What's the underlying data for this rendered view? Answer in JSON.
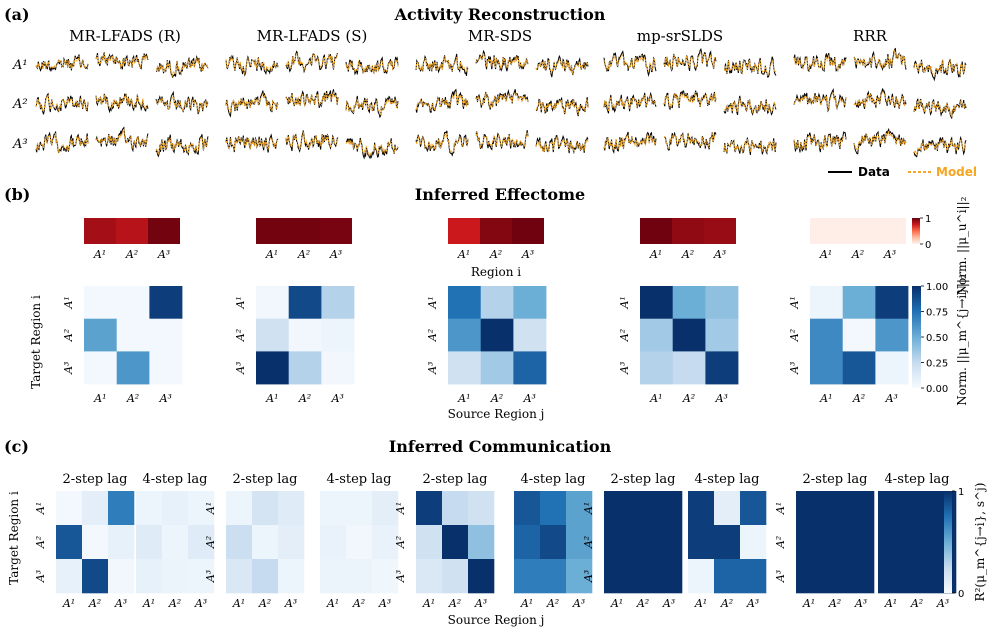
{
  "panel_a": {
    "label": "(a)",
    "title": "Activity Reconstruction",
    "models": [
      "MR-LFADS (R)",
      "MR-LFADS (S)",
      "MR-SDS",
      "mp-srSLDS",
      "RRR"
    ],
    "region_labels": [
      "A¹",
      "A²",
      "A³"
    ],
    "traces_per_cell": 3,
    "legend": {
      "data": "Data",
      "model": "Model"
    },
    "colors": {
      "data": "#000000",
      "model": "#f5a623"
    }
  },
  "panel_b": {
    "label": "(b)",
    "title": "Inferred Effectome",
    "top_xlabel": "Region i",
    "bottom_xlabel": "Source Region j",
    "ylabel": "Target Region i",
    "tick_labels": [
      "A¹",
      "A²",
      "A³"
    ],
    "top_colorbar": {
      "label": "Norm. ||μ_u^i||₂",
      "ticks": [
        "1",
        "0"
      ]
    },
    "bottom_colorbar": {
      "label": "Norm. ||μ_m^{j→i}||₂",
      "ticks": [
        "1.00",
        "0.75",
        "0.50",
        "0.25",
        "0.00"
      ]
    }
  },
  "panel_c": {
    "label": "(c)",
    "title": "Inferred Communication",
    "lag_titles": [
      "2-step lag",
      "4-step lag"
    ],
    "xlabel": "Source Region j",
    "ylabel": "Target Region i",
    "tick_labels": [
      "A¹",
      "A²",
      "A³"
    ],
    "colorbar": {
      "label": "R²(μ_m^{j→i}, s^j)",
      "ticks": [
        "1",
        "0"
      ]
    }
  },
  "chart_data": [
    {
      "type": "heatmap",
      "title": "Inferred Effectome - input norms (Norm. ||mu_u^i||_2)",
      "categories": [
        "A1",
        "A2",
        "A3"
      ],
      "series": [
        {
          "name": "MR-LFADS (R)",
          "values": [
            0.85,
            0.8,
            0.97
          ]
        },
        {
          "name": "MR-LFADS (S)",
          "values": [
            0.97,
            0.97,
            0.96
          ]
        },
        {
          "name": "MR-SDS",
          "values": [
            0.75,
            0.93,
            0.98
          ]
        },
        {
          "name": "mp-srSLDS",
          "values": [
            0.98,
            0.9,
            0.88
          ]
        },
        {
          "name": "RRR",
          "values": [
            0.03,
            0.03,
            0.03
          ]
        }
      ],
      "zlim": [
        0,
        1
      ]
    },
    {
      "type": "heatmap",
      "title": "Inferred Effectome - communication norms (rows: target i, cols: source j)",
      "xlabel": "Source Region j",
      "ylabel": "Target Region i",
      "categories": [
        "A1",
        "A2",
        "A3"
      ],
      "matrices": [
        {
          "name": "MR-LFADS (R)",
          "values": [
            [
              0.02,
              0.02,
              0.95
            ],
            [
              0.55,
              0.02,
              0.02
            ],
            [
              0.02,
              0.6,
              0.02
            ]
          ]
        },
        {
          "name": "MR-LFADS (S)",
          "values": [
            [
              0.03,
              0.9,
              0.3
            ],
            [
              0.2,
              0.03,
              0.05
            ],
            [
              1.0,
              0.3,
              0.03
            ]
          ]
        },
        {
          "name": "MR-SDS",
          "values": [
            [
              0.75,
              0.3,
              0.5
            ],
            [
              0.6,
              1.0,
              0.2
            ],
            [
              0.2,
              0.35,
              0.8
            ]
          ]
        },
        {
          "name": "mp-srSLDS",
          "values": [
            [
              1.0,
              0.5,
              0.4
            ],
            [
              0.35,
              1.0,
              0.35
            ],
            [
              0.3,
              0.25,
              0.95
            ]
          ]
        },
        {
          "name": "RRR",
          "values": [
            [
              0.05,
              0.5,
              0.95
            ],
            [
              0.65,
              0.02,
              0.6
            ],
            [
              0.65,
              0.85,
              0.05
            ]
          ]
        }
      ],
      "zlim": [
        0,
        1
      ]
    },
    {
      "type": "heatmap",
      "title": "Inferred Communication - R^2 (rows: target i, cols: source j)",
      "xlabel": "Source Region j",
      "ylabel": "Target Region i",
      "categories": [
        "A1",
        "A2",
        "A3"
      ],
      "matrices": [
        {
          "name": "MR-LFADS (R) 2-step lag",
          "values": [
            [
              0.02,
              0.1,
              0.7
            ],
            [
              0.85,
              0.02,
              0.08
            ],
            [
              0.08,
              0.9,
              0.03
            ]
          ]
        },
        {
          "name": "MR-LFADS (R) 4-step lag",
          "values": [
            [
              0.05,
              0.08,
              0.05
            ],
            [
              0.12,
              0.05,
              0.12
            ],
            [
              0.08,
              0.06,
              0.05
            ]
          ]
        },
        {
          "name": "MR-LFADS (S) 2-step lag",
          "values": [
            [
              0.05,
              0.18,
              0.12
            ],
            [
              0.22,
              0.05,
              0.1
            ],
            [
              0.15,
              0.25,
              0.05
            ]
          ]
        },
        {
          "name": "MR-LFADS (S) 4-step lag",
          "values": [
            [
              0.05,
              0.05,
              0.1
            ],
            [
              0.07,
              0.03,
              0.07
            ],
            [
              0.06,
              0.06,
              0.04
            ]
          ]
        },
        {
          "name": "MR-SDS 2-step lag",
          "values": [
            [
              0.95,
              0.25,
              0.2
            ],
            [
              0.2,
              1.0,
              0.4
            ],
            [
              0.15,
              0.2,
              1.0
            ]
          ]
        },
        {
          "name": "MR-SDS 4-step lag",
          "values": [
            [
              0.85,
              0.75,
              0.55
            ],
            [
              0.8,
              0.9,
              0.55
            ],
            [
              0.7,
              0.7,
              0.5
            ]
          ]
        },
        {
          "name": "mp-srSLDS 2-step lag",
          "values": [
            [
              1.0,
              1.0,
              1.0
            ],
            [
              1.0,
              1.0,
              1.0
            ],
            [
              1.0,
              1.0,
              1.0
            ]
          ]
        },
        {
          "name": "mp-srSLDS 4-step lag",
          "values": [
            [
              0.95,
              0.1,
              0.85
            ],
            [
              0.95,
              0.95,
              0.05
            ],
            [
              0.05,
              0.8,
              0.8
            ]
          ]
        },
        {
          "name": "RRR 2-step lag",
          "values": [
            [
              1.0,
              1.0,
              1.0
            ],
            [
              1.0,
              1.0,
              1.0
            ],
            [
              1.0,
              1.0,
              1.0
            ]
          ]
        },
        {
          "name": "RRR 4-step lag",
          "values": [
            [
              1.0,
              1.0,
              1.0
            ],
            [
              1.0,
              1.0,
              1.0
            ],
            [
              1.0,
              1.0,
              1.0
            ]
          ]
        }
      ],
      "zlim": [
        0,
        1
      ]
    }
  ]
}
